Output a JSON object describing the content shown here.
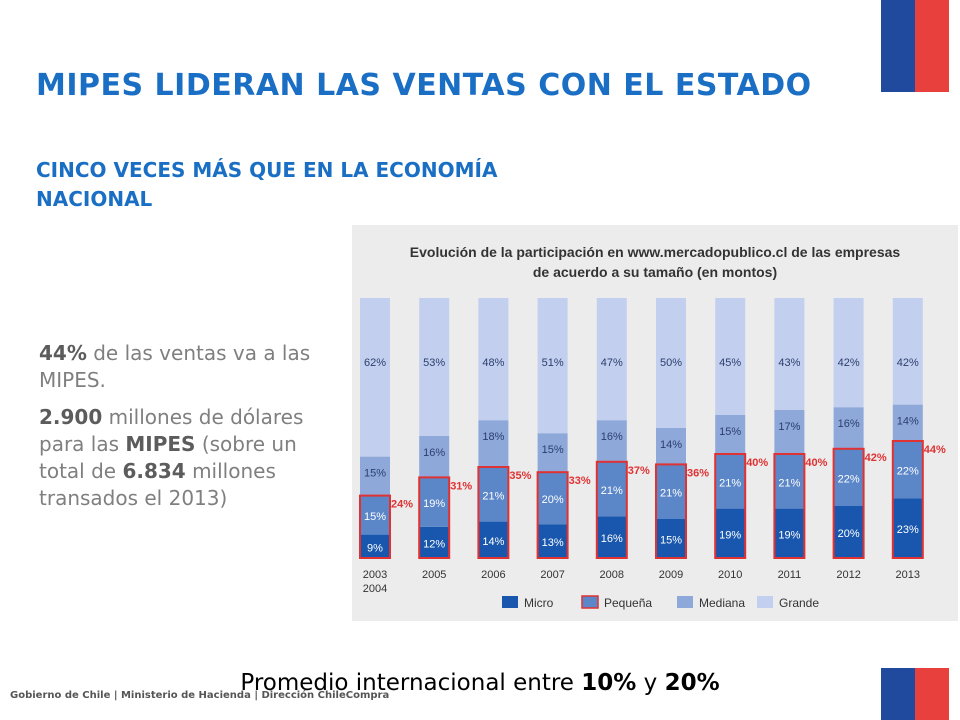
{
  "title": "MIPES LIDERAN LAS VENTAS CON EL ESTADO",
  "subtitle": "CINCO VECES MÁS QUE EN LA ECONOMÍA NACIONAL",
  "bullets": [
    {
      "b1": "44%",
      "t1": " de las ventas va a las MIPES."
    },
    {
      "b1": "2.900",
      "t1": " millones de dólares para las ",
      "b2": "MIPES",
      "t2": " (sobre un total de ",
      "b3": "6.834",
      "t3": " millones transados el 2013)"
    }
  ],
  "footnote": {
    "prefix": "Promedio internacional entre ",
    "low": "10%",
    "mid": " y ",
    "high": "20%"
  },
  "footer": "Gobierno de Chile | Ministerio de Hacienda | Dirección ChileCompra",
  "colors": {
    "micro": "#1857ad",
    "pequena": "#5b86c7",
    "mediana": "#8da8d9",
    "grande": "#c3cfee",
    "highlight": "#e03232",
    "accent": "#1a6fc4",
    "flag_blue": "#1f4a9e",
    "flag_red": "#e8403c"
  },
  "chart_data": {
    "type": "bar",
    "stacked": true,
    "title": "Evolución de la participación en www.mercadopublico.cl de las empresas de acuerdo a su tamaño (en montos)",
    "categories": [
      "2003 2004",
      "2005",
      "2006",
      "2007",
      "2008",
      "2009",
      "2010",
      "2011",
      "2012",
      "2013"
    ],
    "series": [
      {
        "name": "Micro",
        "values": [
          9,
          12,
          14,
          13,
          16,
          15,
          19,
          19,
          20,
          23
        ]
      },
      {
        "name": "Pequeña",
        "values": [
          15,
          19,
          21,
          20,
          21,
          21,
          21,
          21,
          22,
          22
        ]
      },
      {
        "name": "Mediana",
        "values": [
          15,
          16,
          18,
          15,
          16,
          14,
          15,
          17,
          16,
          14
        ]
      },
      {
        "name": "Grande",
        "values": [
          62,
          53,
          48,
          51,
          47,
          50,
          45,
          43,
          42,
          42
        ]
      }
    ],
    "mipes_totals": [
      "24%",
      "31%",
      "35%",
      "33%",
      "37%",
      "36%",
      "40%",
      "40%",
      "42%",
      "44%"
    ],
    "ylim": [
      0,
      100
    ],
    "legend_position": "bottom"
  }
}
